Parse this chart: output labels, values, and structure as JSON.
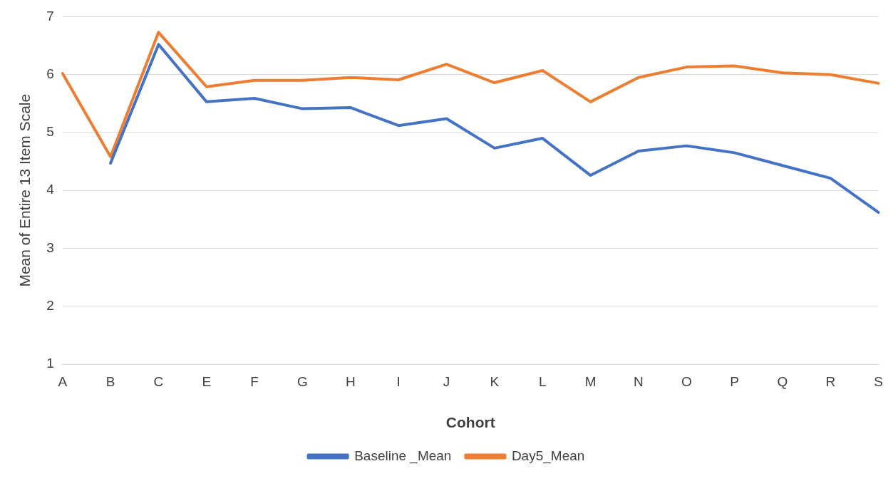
{
  "chart_data": {
    "type": "line",
    "xlabel": "Cohort",
    "ylabel": "Mean of Entire 13 Item Scale",
    "categories": [
      "A",
      "B",
      "C",
      "E",
      "F",
      "G",
      "H",
      "I",
      "J",
      "K",
      "L",
      "M",
      "N",
      "O",
      "P",
      "Q",
      "R",
      "S"
    ],
    "series": [
      {
        "name": "Baseline _Mean",
        "color": "#4472c4",
        "values": [
          null,
          4.47,
          6.52,
          5.53,
          5.59,
          5.41,
          5.43,
          5.12,
          5.24,
          4.73,
          4.9,
          4.26,
          4.68,
          4.77,
          4.65,
          4.43,
          4.21,
          3.62
        ]
      },
      {
        "name": "Day5_Mean",
        "color": "#ed7d31",
        "values": [
          6.02,
          4.58,
          6.73,
          5.79,
          5.9,
          5.9,
          5.95,
          5.91,
          6.18,
          5.86,
          6.07,
          5.53,
          5.95,
          6.13,
          6.15,
          6.03,
          6.0,
          5.85
        ]
      }
    ],
    "ylim": [
      1,
      7
    ],
    "yticks": [
      1,
      2,
      3,
      4,
      5,
      6,
      7
    ],
    "grid": "y",
    "legend": "bottom"
  }
}
